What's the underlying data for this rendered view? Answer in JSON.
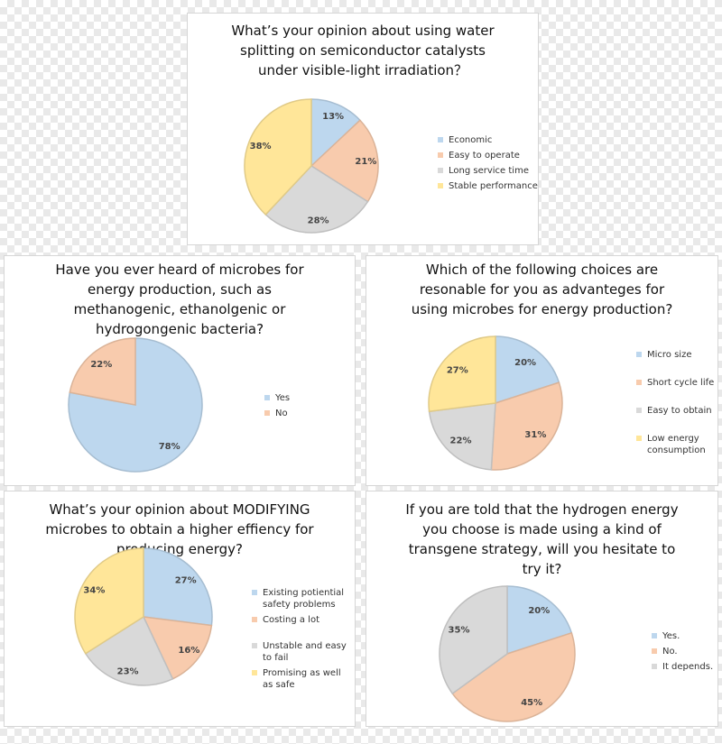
{
  "colors": {
    "blue": "#bdd7ee",
    "orange": "#f8cbad",
    "gray": "#d9d9d9",
    "yellow": "#ffe699"
  },
  "chart_data": [
    {
      "type": "pie",
      "title": "What’s your opinion about using water splitting on semiconductor catalysts under visible-light irradiation？",
      "categories": [
        "Economic",
        "Easy to operate",
        "Long service time",
        "Stable performance"
      ],
      "values": [
        13,
        21,
        28,
        38
      ],
      "labels": [
        "13%",
        "21%",
        "28%",
        "38%"
      ],
      "colors": [
        "blue",
        "orange",
        "gray",
        "yellow"
      ],
      "legend_position": "right"
    },
    {
      "type": "pie",
      "title": "Have you ever heard of  microbes for energy production, such as methanogenic, ethanolgenic or hydrogongenic bacteria?",
      "categories": [
        "Yes",
        "No"
      ],
      "values": [
        78,
        22
      ],
      "labels": [
        "78%",
        "22%"
      ],
      "colors": [
        "blue",
        "orange"
      ],
      "legend_position": "right"
    },
    {
      "type": "pie",
      "title": "Which of the following choices are resonable for you as advanteges for using microbes for energy production?",
      "categories": [
        "Micro size",
        "Short cycle life",
        "Easy to obtain",
        "Low energy consumption"
      ],
      "values": [
        20,
        31,
        22,
        27
      ],
      "labels": [
        "20%",
        "31%",
        "22%",
        "27%"
      ],
      "colors": [
        "blue",
        "orange",
        "gray",
        "yellow"
      ],
      "legend_position": "right"
    },
    {
      "type": "pie",
      "title": "What’s your opinion about MODIFYING microbes to obtain a higher effiency for producing energy?",
      "categories": [
        "Existing potiential safety problems",
        "Costing a lot",
        "Unstable and easy to fail",
        "Promising as well as safe"
      ],
      "values": [
        27,
        16,
        23,
        34
      ],
      "labels": [
        "27%",
        "16%",
        "23%",
        "34%"
      ],
      "colors": [
        "blue",
        "orange",
        "gray",
        "yellow"
      ],
      "legend_position": "right"
    },
    {
      "type": "pie",
      "title": "If you are told that the hydrogen energy you choose is made using a kind of transgene strategy, will you hesitate to try it?",
      "categories": [
        "Yes.",
        "No.",
        "It depends."
      ],
      "values": [
        20,
        45,
        35
      ],
      "labels": [
        "20%",
        "45%",
        "35%"
      ],
      "colors": [
        "blue",
        "orange",
        "gray"
      ],
      "legend_position": "right"
    }
  ]
}
